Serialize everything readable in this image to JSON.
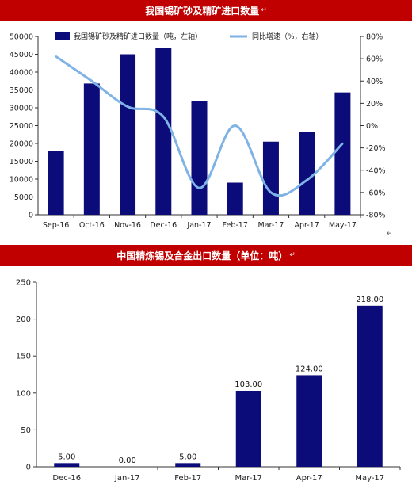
{
  "colors": {
    "banner": "#c00000",
    "bar": "#0b0b7a",
    "line": "#7fb2e5",
    "axis": "#333333"
  },
  "chart_data": [
    {
      "type": "bar",
      "title": "我国锡矿砂及精矿进口数量",
      "categories": [
        "Sep-16",
        "Oct-16",
        "Nov-16",
        "Dec-16",
        "Jan-17",
        "Feb-17",
        "Mar-17",
        "Apr-17",
        "May-17"
      ],
      "series": [
        {
          "name": "我国锡矿砂及精矿进口数量（吨，左轴）",
          "type": "bar",
          "axis": "left",
          "values": [
            18000,
            36800,
            45000,
            46700,
            31800,
            9000,
            20500,
            23200,
            34300
          ]
        },
        {
          "name": "同比增速（%，右轴）",
          "type": "line",
          "axis": "right",
          "values": [
            62,
            40,
            17,
            8,
            -56,
            0,
            -60,
            -49,
            -16
          ]
        }
      ],
      "ylim_left": [
        0,
        50000
      ],
      "yticks_left": [
        "0",
        "5000",
        "10000",
        "15000",
        "20000",
        "25000",
        "30000",
        "35000",
        "40000",
        "45000",
        "50000"
      ],
      "ylim_right": [
        -80,
        80
      ],
      "yticks_right": [
        "-80%",
        "-60%",
        "-40%",
        "-20%",
        "0%",
        "20%",
        "40%",
        "60%",
        "80%"
      ],
      "legend_position": "top"
    },
    {
      "type": "bar",
      "title": "中国精炼锡及合金出口数量（单位：吨）",
      "categories": [
        "Dec-16",
        "Jan-17",
        "Feb-17",
        "Mar-17",
        "Apr-17",
        "May-17"
      ],
      "values": [
        5,
        0,
        5,
        103,
        124,
        218
      ],
      "data_labels": [
        "5.00",
        "0.00",
        "5.00",
        "103.00",
        "124.00",
        "218.00"
      ],
      "ylim": [
        0,
        250
      ],
      "yticks": [
        "0",
        "50",
        "100",
        "150",
        "200",
        "250"
      ]
    }
  ]
}
